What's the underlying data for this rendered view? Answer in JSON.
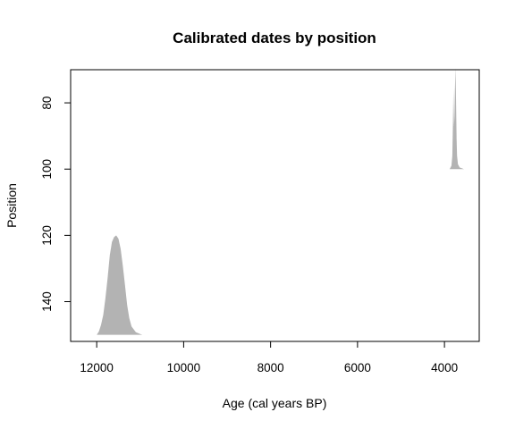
{
  "chart_data": {
    "type": "area",
    "title": "Calibrated dates by position",
    "xlabel": "Age (cal years BP)",
    "ylabel": "Position",
    "x_reversed": true,
    "y_reversed": true,
    "xlim": [
      12600,
      3200
    ],
    "ylim": [
      70,
      152
    ],
    "x_ticks": [
      12000,
      10000,
      8000,
      6000,
      4000
    ],
    "y_ticks": [
      80,
      100,
      120,
      140
    ],
    "fill_color": "#b3b3b3",
    "series": [
      {
        "position": 150,
        "peak_position": 120,
        "x_range": [
          12000,
          10950
        ],
        "profile": [
          [
            12000,
            150
          ],
          [
            11950,
            149
          ],
          [
            11900,
            147
          ],
          [
            11850,
            144
          ],
          [
            11800,
            139
          ],
          [
            11750,
            133
          ],
          [
            11700,
            126
          ],
          [
            11650,
            122
          ],
          [
            11600,
            120.5
          ],
          [
            11550,
            120
          ],
          [
            11500,
            121
          ],
          [
            11450,
            124
          ],
          [
            11400,
            129
          ],
          [
            11350,
            135
          ],
          [
            11300,
            141
          ],
          [
            11250,
            145
          ],
          [
            11200,
            147.5
          ],
          [
            11100,
            149.2
          ],
          [
            11000,
            149.8
          ],
          [
            10950,
            150
          ]
        ]
      },
      {
        "position": 100,
        "peak_position": 69.5,
        "x_range": [
          3880,
          3550
        ],
        "profile": [
          [
            3880,
            100
          ],
          [
            3840,
            99
          ],
          [
            3820,
            96
          ],
          [
            3805,
            86
          ],
          [
            3795,
            76
          ],
          [
            3790,
            80
          ],
          [
            3780,
            87
          ],
          [
            3770,
            84
          ],
          [
            3760,
            76
          ],
          [
            3750,
            71
          ],
          [
            3745,
            69.5
          ],
          [
            3740,
            73
          ],
          [
            3730,
            82
          ],
          [
            3720,
            91
          ],
          [
            3710,
            96
          ],
          [
            3690,
            98.5
          ],
          [
            3650,
            99.5
          ],
          [
            3550,
            100
          ]
        ]
      }
    ]
  }
}
